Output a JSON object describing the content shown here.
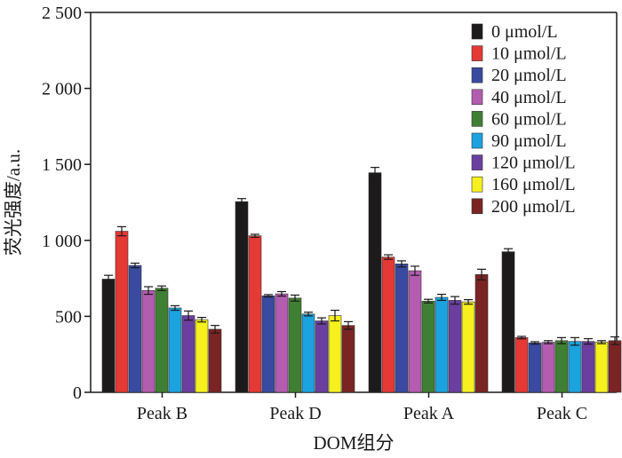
{
  "chart_data": {
    "type": "bar",
    "xlabel": "DOM组分",
    "ylabel": "荧光强度/a.u.",
    "ylim": [
      0,
      2500
    ],
    "yticks": [
      0,
      500,
      1000,
      1500,
      2000,
      2500
    ],
    "ytick_labels": [
      "0",
      "500",
      "1 000",
      "1 500",
      "2 000",
      "2 500"
    ],
    "grid": false,
    "legend_position": "top-right",
    "categories": [
      "Peak B",
      "Peak D",
      "Peak A",
      "Peak C"
    ],
    "series": [
      {
        "name": "0 μmol/L",
        "color": "#1c1a1a",
        "values": [
          745,
          1255,
          1445,
          925
        ],
        "errors": [
          25,
          20,
          35,
          20
        ]
      },
      {
        "name": "10 μmol/L",
        "color": "#e53935",
        "values": [
          1060,
          1030,
          890,
          360
        ],
        "errors": [
          30,
          10,
          15,
          8
        ]
      },
      {
        "name": "20 μmol/L",
        "color": "#3a4aa0",
        "values": [
          835,
          635,
          845,
          325
        ],
        "errors": [
          15,
          8,
          20,
          8
        ]
      },
      {
        "name": "40 μmol/L",
        "color": "#b35cb0",
        "values": [
          670,
          648,
          800,
          330
        ],
        "errors": [
          25,
          15,
          30,
          10
        ]
      },
      {
        "name": "60 μmol/L",
        "color": "#3f7f33",
        "values": [
          685,
          620,
          600,
          340
        ],
        "errors": [
          15,
          20,
          12,
          20
        ]
      },
      {
        "name": "90 μmol/L",
        "color": "#1ba3e0",
        "values": [
          555,
          515,
          625,
          335
        ],
        "errors": [
          15,
          12,
          20,
          25
        ]
      },
      {
        "name": "120 μmol/L",
        "color": "#6b3fa0",
        "values": [
          505,
          470,
          605,
          335
        ],
        "errors": [
          30,
          20,
          25,
          18
        ]
      },
      {
        "name": "160 μmol/L",
        "color": "#f5f01e",
        "values": [
          478,
          505,
          595,
          330
        ],
        "errors": [
          15,
          35,
          15,
          10
        ]
      },
      {
        "name": "200 μmol/L",
        "color": "#7a2424",
        "values": [
          415,
          440,
          775,
          340
        ],
        "errors": [
          25,
          25,
          35,
          25
        ]
      }
    ]
  }
}
